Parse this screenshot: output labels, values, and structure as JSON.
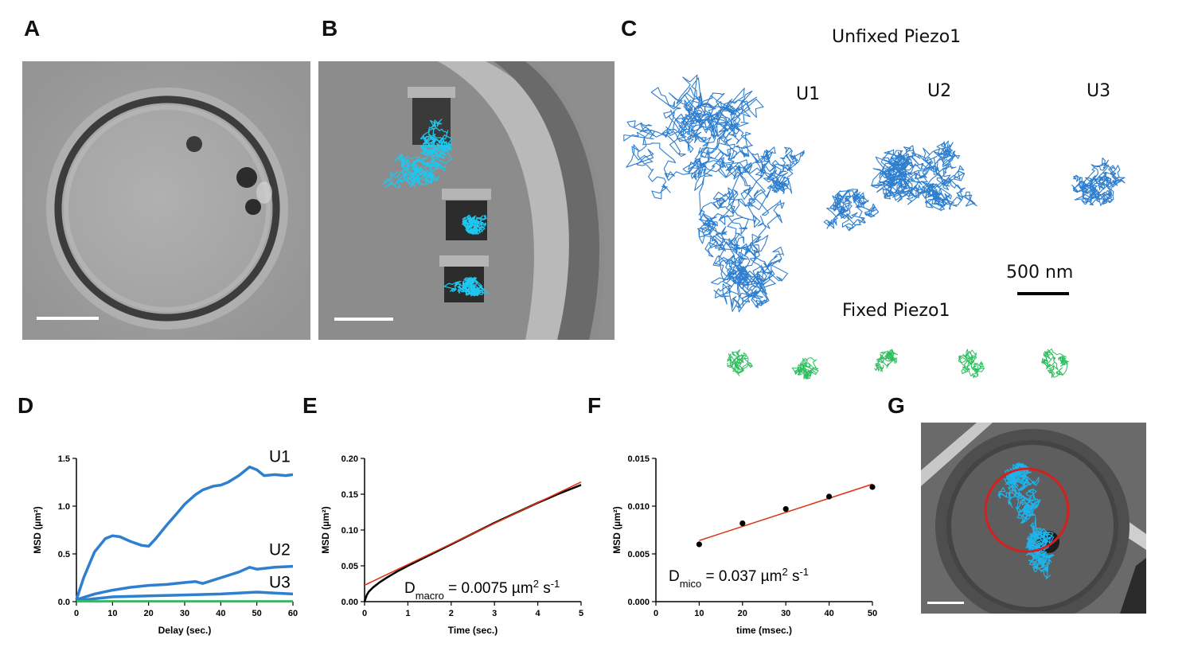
{
  "panels": {
    "A": {
      "letter": "A"
    },
    "B": {
      "letter": "B"
    },
    "C": {
      "letter": "C",
      "unfixed_title": "Unfixed Piezo1",
      "fixed_title": "Fixed Piezo1",
      "track_labels": [
        "U1",
        "U2",
        "U3"
      ],
      "scale_bar_label": "500 nm",
      "colors": {
        "unfixed": "#2f7fd0",
        "fixed": "#2fbf5f"
      }
    },
    "D": {
      "letter": "D"
    },
    "E": {
      "letter": "E"
    },
    "F": {
      "letter": "F"
    },
    "G": {
      "letter": "G",
      "colors": {
        "track": "#1fb3ea",
        "circle": "#d42020"
      }
    }
  },
  "chart_data": [
    {
      "panel": "D",
      "type": "line",
      "xlabel": "Delay (sec.)",
      "ylabel": "MSD (µm²)",
      "xlim": [
        0,
        60
      ],
      "ylim": [
        0,
        1.5
      ],
      "xticks": [
        "0",
        "10",
        "20",
        "30",
        "40",
        "50",
        "60"
      ],
      "yticks": [
        "0.0",
        "0.5",
        "1.0",
        "1.5"
      ],
      "series": [
        {
          "name": "U1",
          "color": "#2f7fd0",
          "x": [
            0,
            2,
            5,
            8,
            10,
            12,
            15,
            18,
            20,
            22,
            25,
            28,
            30,
            33,
            35,
            38,
            40,
            42,
            45,
            48,
            50,
            52,
            55,
            58,
            60
          ],
          "y": [
            0.02,
            0.25,
            0.52,
            0.66,
            0.69,
            0.68,
            0.63,
            0.59,
            0.58,
            0.66,
            0.8,
            0.93,
            1.02,
            1.12,
            1.17,
            1.21,
            1.22,
            1.25,
            1.32,
            1.41,
            1.38,
            1.32,
            1.33,
            1.32,
            1.33
          ]
        },
        {
          "name": "U2",
          "color": "#2f7fd0",
          "x": [
            0,
            5,
            10,
            15,
            20,
            25,
            30,
            33,
            35,
            40,
            45,
            48,
            50,
            55,
            60
          ],
          "y": [
            0.02,
            0.08,
            0.12,
            0.15,
            0.17,
            0.18,
            0.2,
            0.21,
            0.19,
            0.25,
            0.31,
            0.36,
            0.34,
            0.36,
            0.37
          ]
        },
        {
          "name": "U3",
          "color": "#2f7fd0",
          "x": [
            0,
            5,
            10,
            20,
            30,
            40,
            50,
            55,
            60
          ],
          "y": [
            0.01,
            0.03,
            0.05,
            0.06,
            0.07,
            0.08,
            0.1,
            0.09,
            0.08
          ]
        },
        {
          "name": "",
          "color": "#2fbf5f",
          "x": [
            0,
            60
          ],
          "y": [
            0.005,
            0.005
          ]
        }
      ]
    },
    {
      "panel": "E",
      "type": "line",
      "xlabel": "Time (sec.)",
      "ylabel": "MSD (µm²)",
      "xlim": [
        0,
        5
      ],
      "ylim": [
        0,
        0.2
      ],
      "xticks": [
        "0",
        "1",
        "2",
        "3",
        "4",
        "5"
      ],
      "yticks": [
        "0.00",
        "0.05",
        "0.10",
        "0.15",
        "0.20"
      ],
      "annotation": {
        "prefix": "D",
        "sub": "macro",
        "text": " = 0.0075 µm",
        "sup": "2",
        "suffix": " s",
        "sup2": "-1"
      },
      "series": [
        {
          "name": "",
          "color": "#000000",
          "x": [
            0,
            0.05,
            0.1,
            0.2,
            0.35,
            0.5,
            0.75,
            1,
            1.5,
            2,
            2.5,
            3,
            3.5,
            4,
            4.5,
            5
          ],
          "y": [
            0.0,
            0.009,
            0.014,
            0.02,
            0.027,
            0.033,
            0.042,
            0.05,
            0.065,
            0.08,
            0.095,
            0.11,
            0.124,
            0.138,
            0.151,
            0.163
          ]
        },
        {
          "name": "",
          "color": "#e03010",
          "x": [
            0,
            5
          ],
          "y": [
            0.023,
            0.167
          ]
        }
      ]
    },
    {
      "panel": "F",
      "type": "scatter",
      "xlabel": "time (msec.)",
      "ylabel": "MSD (µm²)",
      "xlim": [
        0,
        50
      ],
      "ylim": [
        0,
        0.015
      ],
      "xticks": [
        "0",
        "10",
        "20",
        "30",
        "40",
        "50"
      ],
      "yticks": [
        "0.000",
        "0.005",
        "0.010",
        "0.015"
      ],
      "annotation": {
        "prefix": "D",
        "sub": "mico",
        "text": " = 0.037 µm",
        "sup": "2",
        "suffix": " s",
        "sup2": "-1"
      },
      "points": {
        "x": [
          10,
          20,
          30,
          40,
          50
        ],
        "y": [
          0.006,
          0.0082,
          0.0097,
          0.011,
          0.012
        ]
      },
      "fit": {
        "color": "#e03010",
        "x": [
          10,
          50
        ],
        "y": [
          0.0064,
          0.0123
        ]
      }
    }
  ]
}
